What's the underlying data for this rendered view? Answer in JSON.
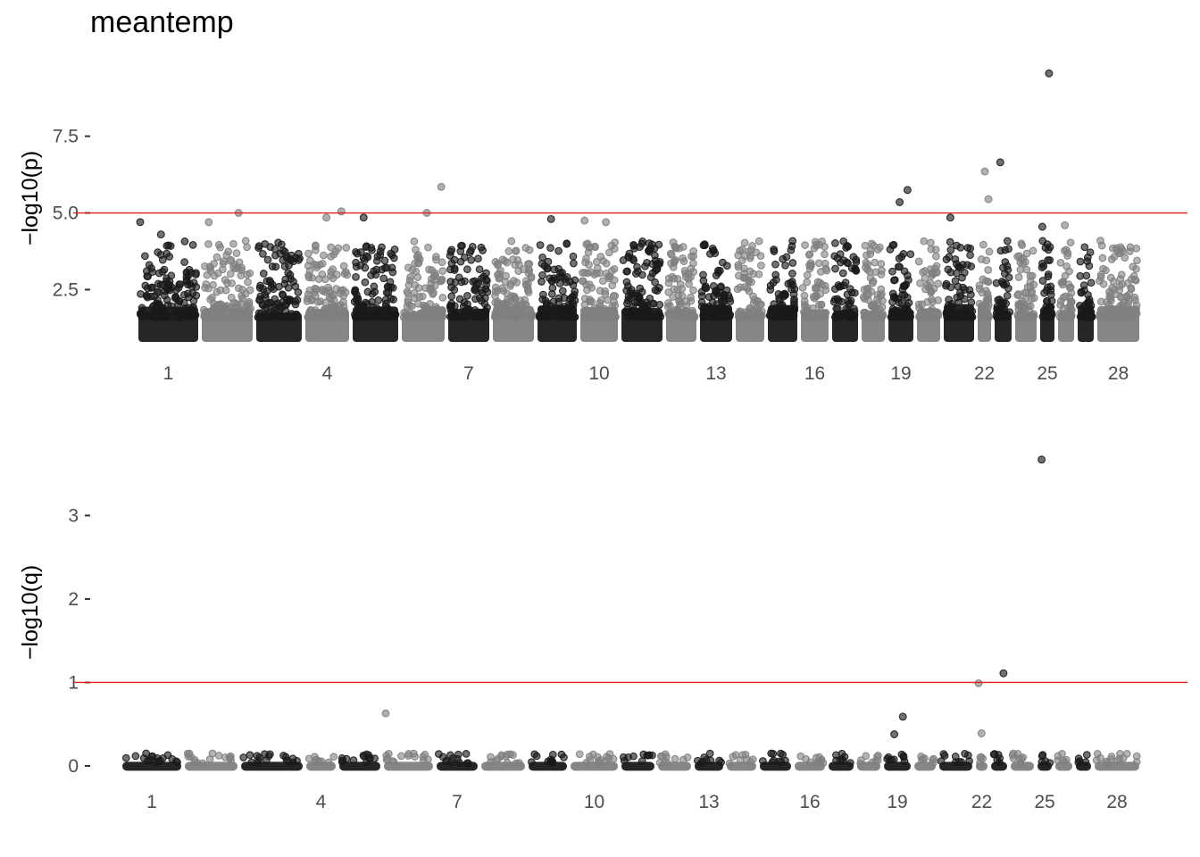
{
  "title": "meantemp",
  "chart_data": [
    {
      "type": "scatter",
      "panel": "top",
      "ylabel": "−log10(p)",
      "ylim": [
        1.0,
        9.7
      ],
      "yticks": [
        2.5,
        5.0,
        7.5
      ],
      "ytick_labels": [
        "2.5",
        "5.0",
        "7.5"
      ],
      "threshold": 5.0,
      "threshold_color": "#e41a1c",
      "grid": false,
      "chromosome_labels": [
        "1",
        "4",
        "7",
        "10",
        "13",
        "16",
        "19",
        "22",
        "25",
        "28"
      ],
      "colors": {
        "odd": "#1a1a1a",
        "even": "#808080"
      },
      "notable_points": [
        {
          "chromosome": 1,
          "value": 4.7
        },
        {
          "chromosome": 1,
          "value": 4.3
        },
        {
          "chromosome": 2,
          "value": 5.0
        },
        {
          "chromosome": 2,
          "value": 4.7
        },
        {
          "chromosome": 4,
          "value": 4.85
        },
        {
          "chromosome": 4,
          "value": 5.05
        },
        {
          "chromosome": 5,
          "value": 4.85
        },
        {
          "chromosome": 6,
          "value": 5.0
        },
        {
          "chromosome": 6,
          "value": 5.85
        },
        {
          "chromosome": 9,
          "value": 4.8
        },
        {
          "chromosome": 10,
          "value": 4.7
        },
        {
          "chromosome": 10,
          "value": 4.75
        },
        {
          "chromosome": 19,
          "value": 5.35
        },
        {
          "chromosome": 19,
          "value": 5.75
        },
        {
          "chromosome": 21,
          "value": 4.85
        },
        {
          "chromosome": 22,
          "value": 6.35
        },
        {
          "chromosome": 22,
          "value": 5.45
        },
        {
          "chromosome": 23,
          "value": 6.65
        },
        {
          "chromosome": 25,
          "value": 9.55
        },
        {
          "chromosome": 25,
          "value": 4.55
        },
        {
          "chromosome": 26,
          "value": 4.6
        }
      ]
    },
    {
      "type": "scatter",
      "panel": "bottom",
      "ylabel": "−log10(q)",
      "ylim": [
        0,
        3.7
      ],
      "yticks": [
        0,
        1,
        2,
        3
      ],
      "ytick_labels": [
        "0",
        "1",
        "2",
        "3"
      ],
      "threshold": 1.0,
      "threshold_color": "#e41a1c",
      "grid": false,
      "chromosome_labels": [
        "1",
        "4",
        "7",
        "10",
        "13",
        "16",
        "19",
        "22",
        "25",
        "28"
      ],
      "colors": {
        "odd": "#1a1a1a",
        "even": "#808080"
      },
      "notable_points": [
        {
          "chromosome": 6,
          "value": 0.63
        },
        {
          "chromosome": 19,
          "value": 0.38
        },
        {
          "chromosome": 19,
          "value": 0.59
        },
        {
          "chromosome": 22,
          "value": 0.99
        },
        {
          "chromosome": 22,
          "value": 0.39
        },
        {
          "chromosome": 23,
          "value": 1.11
        },
        {
          "chromosome": 25,
          "value": 3.67
        }
      ]
    }
  ]
}
